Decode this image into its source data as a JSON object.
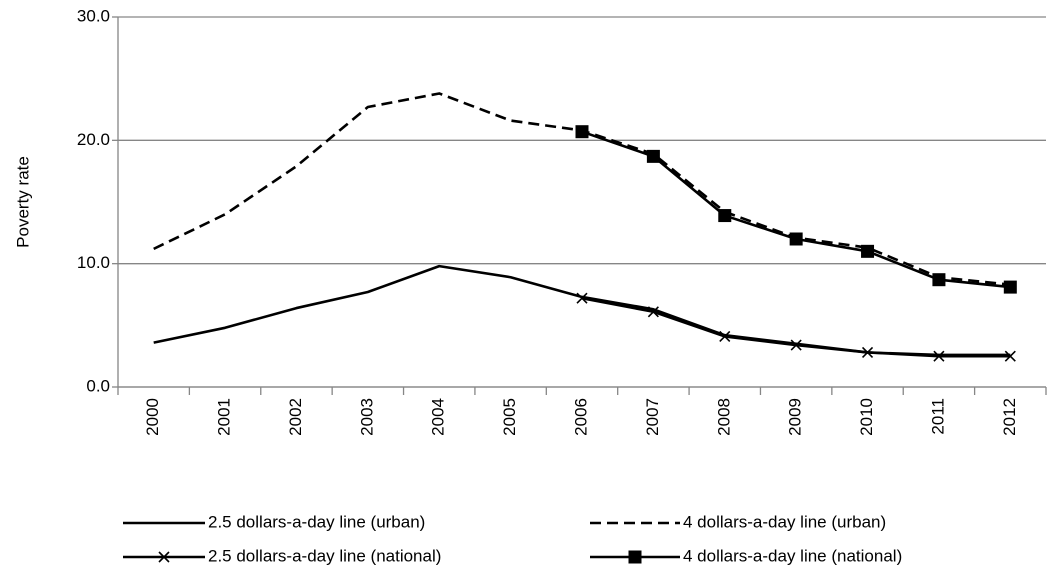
{
  "chart_data": {
    "type": "line",
    "y_label": "Poverty rate",
    "categories": [
      "2000",
      "2001",
      "2002",
      "2003",
      "2004",
      "2005",
      "2006",
      "2007",
      "2008",
      "2009",
      "2010",
      "2011",
      "2012"
    ],
    "series": [
      {
        "name": "2.5 dollars-a-day line (urban)",
        "color": "#000000",
        "dash": false,
        "marker": "none",
        "values": [
          3.6,
          4.8,
          6.4,
          7.7,
          9.8,
          8.9,
          7.3,
          6.3,
          4.2,
          3.5,
          2.8,
          2.6,
          2.6
        ]
      },
      {
        "name": "4 dollars-a-day line (urban)",
        "color": "#000000",
        "dash": true,
        "marker": "none",
        "values": [
          11.2,
          14.0,
          17.9,
          22.7,
          23.8,
          21.6,
          20.8,
          18.9,
          14.2,
          12.1,
          11.3,
          8.9,
          8.3
        ]
      },
      {
        "name": "2.5 dollars-a-day line (national)",
        "color": "#000000",
        "dash": false,
        "marker": "x",
        "values": [
          null,
          null,
          null,
          null,
          null,
          null,
          7.2,
          6.1,
          4.1,
          3.4,
          2.8,
          2.5,
          2.5
        ]
      },
      {
        "name": "4 dollars-a-day line (national)",
        "color": "#000000",
        "dash": false,
        "marker": "square",
        "values": [
          null,
          null,
          null,
          null,
          null,
          null,
          20.7,
          18.7,
          13.9,
          12.0,
          11.0,
          8.7,
          8.1
        ]
      }
    ],
    "ylim": [
      0,
      30
    ],
    "yticks": [
      {
        "value": 0,
        "label": "0.0"
      },
      {
        "value": 10,
        "label": "10.0"
      },
      {
        "value": 20,
        "label": "20.0"
      },
      {
        "value": 30,
        "label": "30.0"
      }
    ],
    "grid": true
  }
}
